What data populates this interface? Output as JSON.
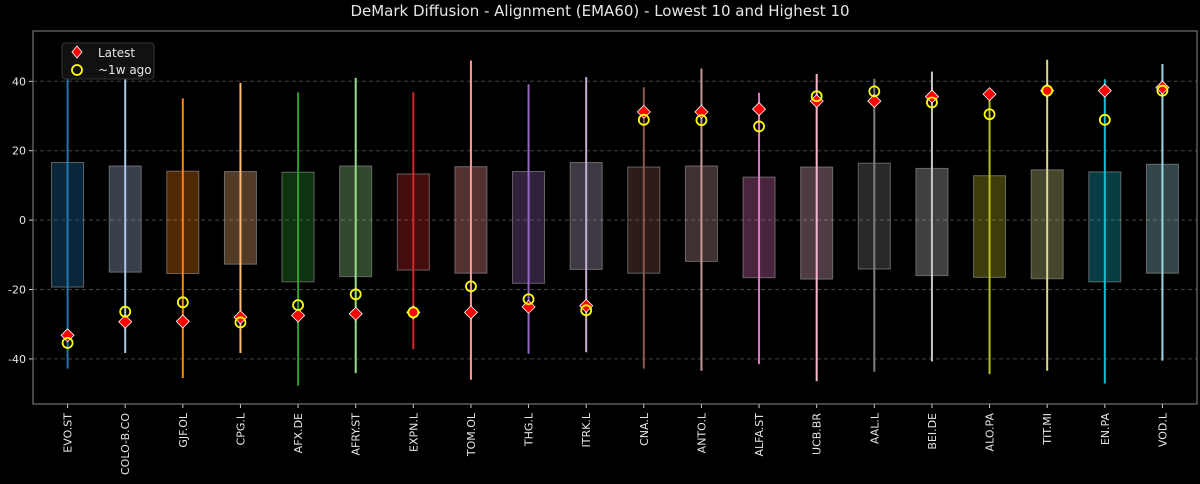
{
  "chart_data": {
    "type": "box-range",
    "title": "DeMark Diffusion - Alignment (EMA60) - Lowest 10 and Highest 10",
    "xlabel": "",
    "ylabel": "",
    "ylim": [
      -53,
      54.5
    ],
    "yticks": [
      -40,
      -20,
      0,
      20,
      40
    ],
    "grid": true,
    "legend_position": "top-left",
    "legend": [
      {
        "label": "Latest",
        "marker": "diamond",
        "color": "#ff0000"
      },
      {
        "label": "~1w ago",
        "marker": "circle",
        "color": "#ffff00"
      }
    ],
    "categories": [
      "EVO.ST",
      "COLO-B.CO",
      "GJF.OL",
      "CPG.L",
      "AFX.DE",
      "AFRY.ST",
      "EXPN.L",
      "TOM.OL",
      "THG.L",
      "ITRK.L",
      "CNA.L",
      "ANTO.L",
      "ALFA.ST",
      "UCB.BR",
      "AAL.L",
      "BEI.DE",
      "ALO.PA",
      "TIT.MI",
      "EN.PA",
      "VOD.L"
    ],
    "colors": [
      "#1f77b4",
      "#aec7e8",
      "#ff7f0e",
      "#ffbb78",
      "#2ca02c",
      "#98df8a",
      "#d62728",
      "#ff9896",
      "#9467bd",
      "#c5b0d5",
      "#8c564b",
      "#c49c94",
      "#e377c2",
      "#f7b6d2",
      "#7f7f7f",
      "#c7c7c7",
      "#bcbd22",
      "#dbdb8d",
      "#17becf",
      "#9edae5"
    ],
    "whisker_min": [
      -42.8,
      -38.3,
      -45.5,
      -38.3,
      -47.7,
      -44.1,
      -37.2,
      -46.0,
      -38.5,
      -38.1,
      -42.8,
      -43.4,
      -41.5,
      -46.4,
      -43.7,
      -40.7,
      -44.4,
      -43.4,
      -47.1,
      -40.5
    ],
    "whisker_max": [
      49.1,
      42.1,
      35.1,
      39.5,
      36.8,
      41.0,
      36.8,
      46.0,
      39.1,
      41.2,
      38.3,
      43.7,
      36.7,
      42.1,
      40.7,
      42.8,
      36.5,
      46.2,
      40.6,
      45.0
    ],
    "box_low": [
      -19.3,
      -15.0,
      -15.4,
      -12.7,
      -17.8,
      -16.3,
      -14.4,
      -15.3,
      -18.2,
      -14.2,
      -15.3,
      -11.9,
      -16.6,
      -17.0,
      -14.1,
      -16.0,
      -16.5,
      -16.9,
      -17.8,
      -15.3
    ],
    "box_high": [
      16.6,
      15.6,
      14.1,
      14.0,
      13.8,
      15.6,
      13.3,
      15.4,
      14.0,
      16.6,
      15.3,
      15.6,
      12.4,
      15.3,
      16.4,
      14.9,
      12.8,
      14.5,
      13.9,
      16.1
    ],
    "series": [
      {
        "name": "Latest",
        "values": [
          -33.2,
          -29.3,
          -29.2,
          -28.0,
          -27.5,
          -27.0,
          -26.6,
          -26.6,
          -25.0,
          -24.7,
          31.2,
          31.2,
          32.0,
          34.3,
          34.3,
          35.6,
          36.3,
          37.3,
          37.3,
          38.2
        ]
      },
      {
        "name": "~1w ago",
        "values": [
          -35.4,
          -26.4,
          -23.7,
          -29.5,
          -24.5,
          -21.4,
          -26.6,
          -19.1,
          -22.8,
          -26.0,
          28.9,
          28.8,
          27.0,
          35.7,
          37.1,
          33.9,
          30.5,
          37.3,
          28.9,
          37.3
        ]
      }
    ]
  }
}
